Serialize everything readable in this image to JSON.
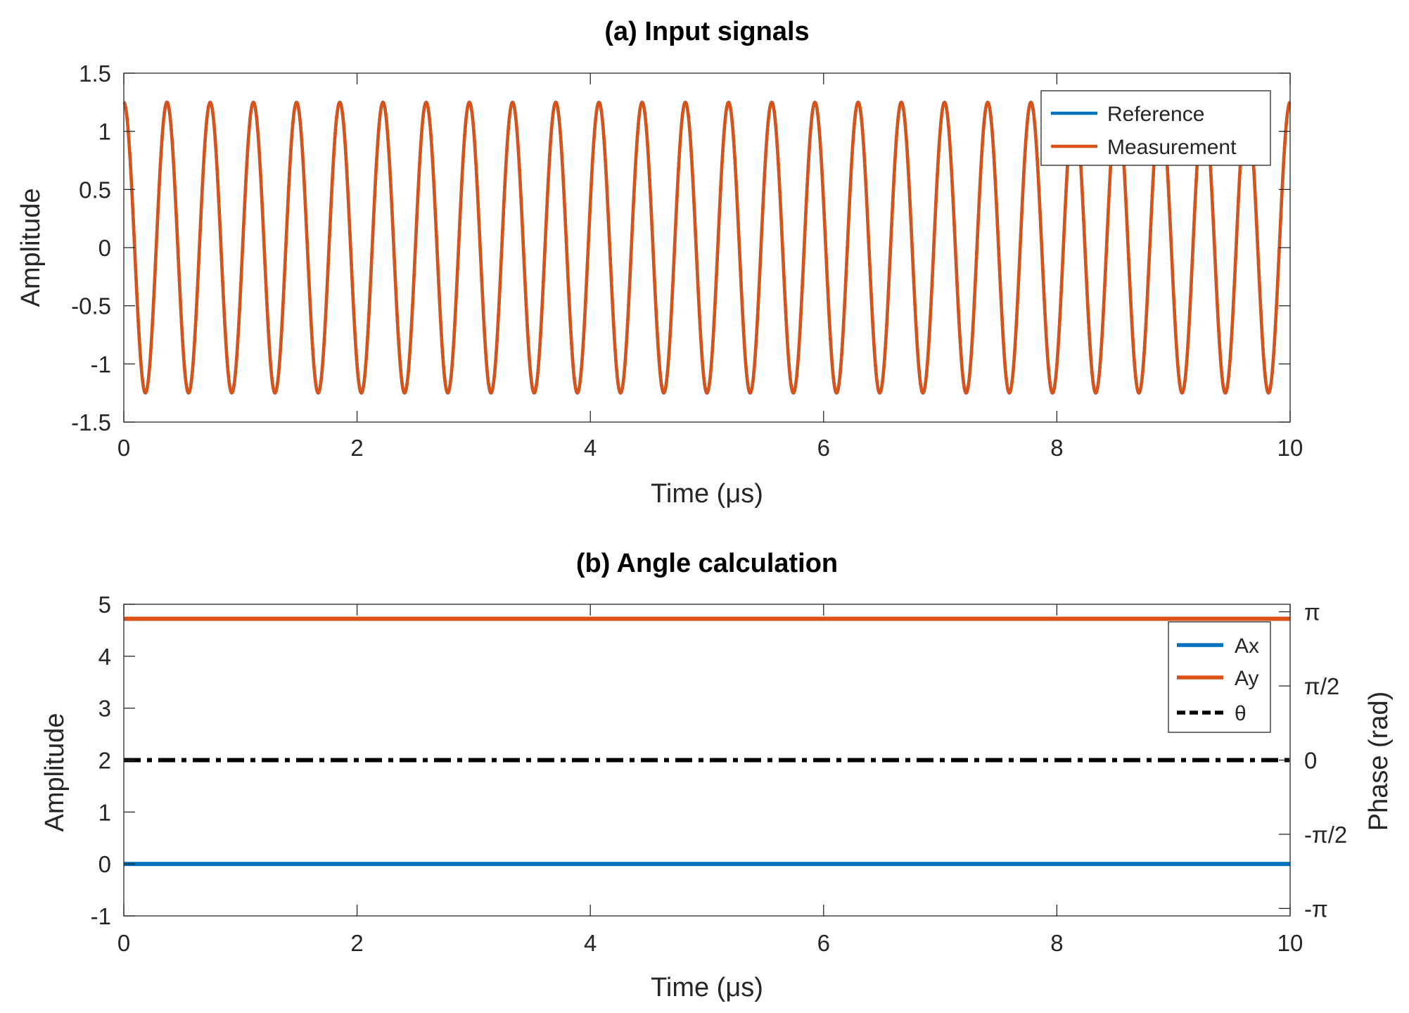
{
  "chart_data": [
    {
      "type": "line",
      "title": "(a) Input signals",
      "xlabel": "Time (μs)",
      "ylabel": "Amplitude",
      "xlim": [
        0,
        10
      ],
      "ylim": [
        -1.5,
        1.5
      ],
      "xticks": [
        0,
        2,
        4,
        6,
        8,
        10
      ],
      "xtick_labels": [
        "0",
        "2",
        "4",
        "6",
        "8",
        "10"
      ],
      "yticks": [
        -1.5,
        -1,
        -0.5,
        0,
        0.5,
        1,
        1.5
      ],
      "ytick_labels": [
        "-1.5",
        "-1",
        "-0.5",
        "0",
        "0.5",
        "1",
        "1.5"
      ],
      "grid": false,
      "legend_position": "top-right",
      "series": [
        {
          "name": "Reference",
          "color": "#0072BD",
          "kind": "cosine",
          "amplitude": 1.25,
          "frequency_mhz": 2.7,
          "phase": 0
        },
        {
          "name": "Measurement",
          "color": "#D95319",
          "kind": "cosine",
          "amplitude": 1.25,
          "frequency_mhz": 2.7,
          "phase": 0
        }
      ]
    },
    {
      "type": "line",
      "title": "(b) Angle calculation",
      "xlabel": "Time (μs)",
      "ylabel": "Amplitude",
      "ylabel_right": "Phase (rad)",
      "xlim": [
        0,
        10
      ],
      "ylim": [
        -1,
        5
      ],
      "ylim_right": [
        -3.3,
        3.3
      ],
      "xticks": [
        0,
        2,
        4,
        6,
        8,
        10
      ],
      "xtick_labels": [
        "0",
        "2",
        "4",
        "6",
        "8",
        "10"
      ],
      "yticks": [
        -1,
        0,
        1,
        2,
        3,
        4,
        5
      ],
      "ytick_labels": [
        "-1",
        "0",
        "1",
        "2",
        "3",
        "4",
        "5"
      ],
      "yticks_right": [
        -3.14159,
        -1.5708,
        0,
        1.5708,
        3.14159
      ],
      "ytick_labels_right": [
        "-π",
        "-π/2",
        "0",
        "π/2",
        "π"
      ],
      "grid": false,
      "legend_position": "top-right",
      "series": [
        {
          "name": "Ax",
          "color": "#0072BD",
          "axis": "left",
          "style": "solid",
          "kind": "constant",
          "value": 0.0
        },
        {
          "name": "Ay",
          "color": "#D95319",
          "axis": "left",
          "style": "solid",
          "kind": "constant",
          "value": 4.72
        },
        {
          "name": "θ",
          "color": "#000000",
          "axis": "right",
          "style": "dashdot",
          "kind": "constant",
          "value": 0.0
        }
      ]
    }
  ]
}
